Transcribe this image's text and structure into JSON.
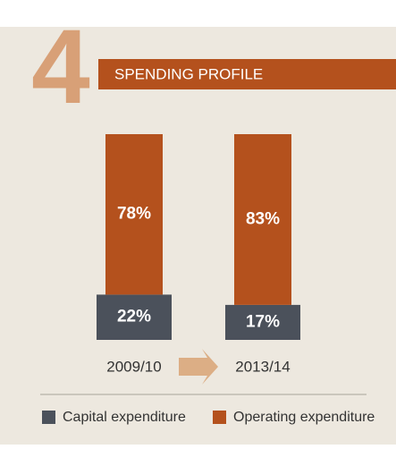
{
  "chart_data": {
    "type": "bar",
    "stacked": true,
    "annotation": "4",
    "title": "SPENDING PROFILE",
    "categories": [
      "2009/10",
      "2013/14"
    ],
    "series": [
      {
        "name": "Capital expenditure",
        "color": "#4b515b",
        "values": [
          22,
          17
        ],
        "value_labels": [
          "22%",
          "17%"
        ]
      },
      {
        "name": "Operating expenditure",
        "color": "#b4511d",
        "values": [
          78,
          83
        ],
        "value_labels": [
          "78%",
          "83%"
        ]
      }
    ]
  }
}
